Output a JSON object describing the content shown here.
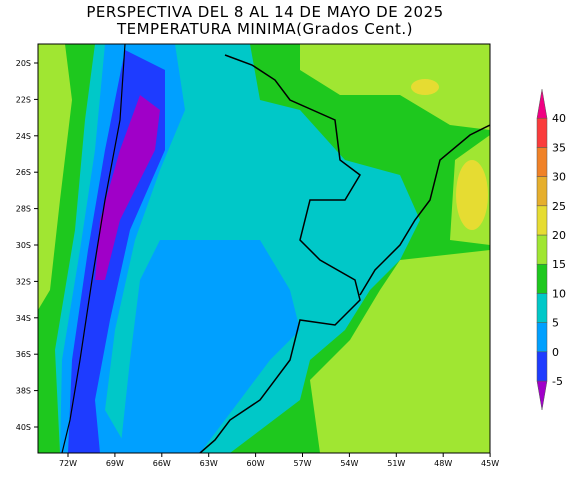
{
  "header": {
    "title": "PERSPECTIVA DEL 8 AL 14 DE MAYO DE 2025",
    "subtitle": "TEMPERATURA MINIMA(Grados Cent.)"
  },
  "map": {
    "lat_labels": [
      "20S",
      "22S",
      "24S",
      "26S",
      "28S",
      "30S",
      "32S",
      "34S",
      "36S",
      "38S",
      "40S"
    ],
    "lon_labels": [
      "72W",
      "69W",
      "66W",
      "63W",
      "60W",
      "57W",
      "54W",
      "51W",
      "48W",
      "45W"
    ]
  },
  "colorbar": {
    "labels": [
      "-5",
      "0",
      "5",
      "10",
      "15",
      "20",
      "25",
      "30",
      "35",
      "40"
    ]
  }
}
